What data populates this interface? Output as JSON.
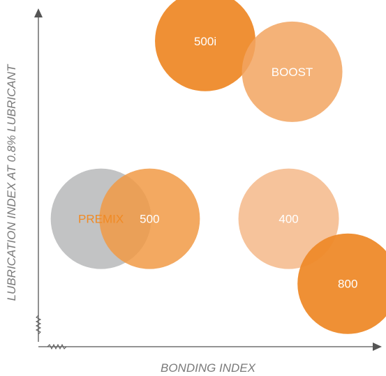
{
  "chart_data": {
    "type": "scatter",
    "title": "",
    "xlabel": "BONDING INDEX",
    "ylabel": "LUBRICATION INDEX AT 0.8% LUBRICANT",
    "xlim": [
      0,
      100
    ],
    "ylim": [
      0,
      100
    ],
    "grid": false,
    "legend": "none",
    "axis_break_symbols": true,
    "points": [
      {
        "label": "PREMIX",
        "x": 18,
        "y": 36,
        "size": 18,
        "color": "#b3b4b5",
        "opacity": 0.8,
        "label_color": "#f08a24"
      },
      {
        "label": "500",
        "x": 32,
        "y": 36,
        "size": 18,
        "color": "#f19a45",
        "opacity": 0.85,
        "label_color": "#ffffff"
      },
      {
        "label": "500i",
        "x": 48,
        "y": 88,
        "size": 18,
        "color": "#ee8a2a",
        "opacity": 0.95,
        "label_color": "#ffffff"
      },
      {
        "label": "BOOST",
        "x": 73,
        "y": 79,
        "size": 18,
        "color": "#f2a460",
        "opacity": 0.85,
        "label_color": "#ffffff"
      },
      {
        "label": "400",
        "x": 72,
        "y": 36,
        "size": 18,
        "color": "#f5b98a",
        "opacity": 0.85,
        "label_color": "#ffffff"
      },
      {
        "label": "800",
        "x": 89,
        "y": 17,
        "size": 18,
        "color": "#ee8a2a",
        "opacity": 0.95,
        "label_color": "#ffffff"
      }
    ]
  }
}
